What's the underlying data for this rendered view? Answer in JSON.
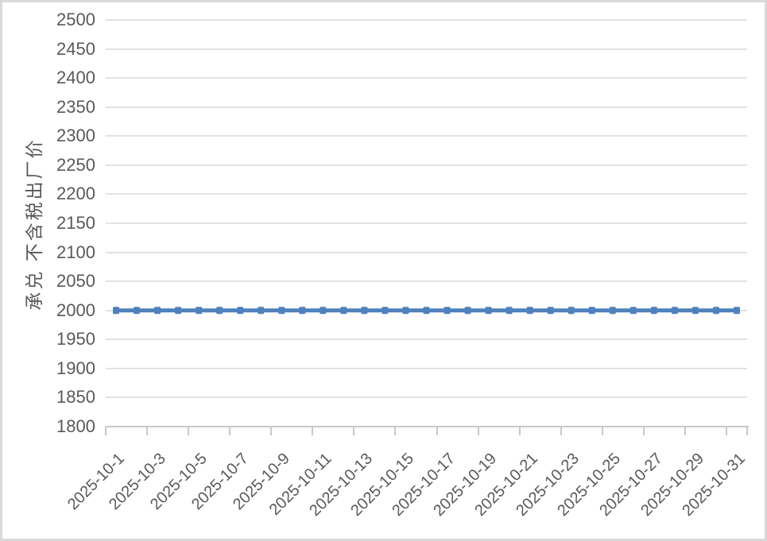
{
  "page": {
    "background_color": "#ffffff",
    "frame_border_color": "#d9d9d9"
  },
  "chart_data": {
    "type": "line",
    "title": "",
    "xlabel": "",
    "ylabel": "承兑 不含税出厂价",
    "x": [
      "2025-10-1",
      "2025-10-2",
      "2025-10-3",
      "2025-10-4",
      "2025-10-5",
      "2025-10-6",
      "2025-10-7",
      "2025-10-8",
      "2025-10-9",
      "2025-10-10",
      "2025-10-11",
      "2025-10-12",
      "2025-10-13",
      "2025-10-14",
      "2025-10-15",
      "2025-10-16",
      "2025-10-17",
      "2025-10-18",
      "2025-10-19",
      "2025-10-20",
      "2025-10-21",
      "2025-10-22",
      "2025-10-23",
      "2025-10-24",
      "2025-10-25",
      "2025-10-26",
      "2025-10-27",
      "2025-10-28",
      "2025-10-29",
      "2025-10-30",
      "2025-10-31"
    ],
    "series": [
      {
        "values": [
          2000,
          2000,
          2000,
          2000,
          2000,
          2000,
          2000,
          2000,
          2000,
          2000,
          2000,
          2000,
          2000,
          2000,
          2000,
          2000,
          2000,
          2000,
          2000,
          2000,
          2000,
          2000,
          2000,
          2000,
          2000,
          2000,
          2000,
          2000,
          2000,
          2000,
          2000
        ]
      }
    ],
    "ylim": [
      1800,
      2500
    ],
    "ytick_step": 50,
    "ytick_labels": [
      "1800",
      "1850",
      "1900",
      "1950",
      "2000",
      "2050",
      "2100",
      "2150",
      "2200",
      "2250",
      "2300",
      "2350",
      "2400",
      "2450",
      "2500"
    ],
    "xtick_label_interval": 2,
    "xtick_labels_shown": [
      "2025-10-1",
      "2025-10-3",
      "2025-10-5",
      "2025-10-7",
      "2025-10-9",
      "2025-10-11",
      "2025-10-13",
      "2025-10-15",
      "2025-10-17",
      "2025-10-19",
      "2025-10-21",
      "2025-10-23",
      "2025-10-25",
      "2025-10-27",
      "2025-10-29",
      "2025-10-31"
    ],
    "grid": true,
    "legend_position": "none",
    "marker": "square",
    "colors": {
      "line": "#4F81BD",
      "gridline": "#E2E2E2",
      "axis_line": "#C8C8C8",
      "tick_text": "#595959"
    }
  }
}
